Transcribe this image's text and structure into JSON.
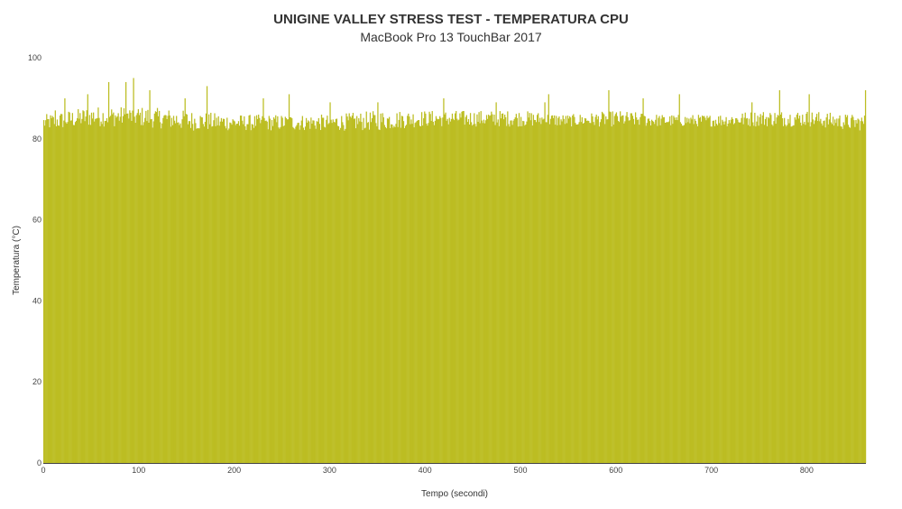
{
  "chart_data": {
    "type": "bar",
    "title": "UNIGINE VALLEY STRESS TEST - TEMPERATURA CPU",
    "subtitle": "MacBook Pro 13 TouchBar 2017",
    "xlabel": "Tempo (secondi)",
    "ylabel": "Temperatura (°C)",
    "xlim": [
      0,
      862
    ],
    "ylim": [
      0,
      100
    ],
    "x_ticks": [
      "0",
      "100",
      "200",
      "300",
      "400",
      "500",
      "600",
      "700",
      "800"
    ],
    "y_ticks": [
      "0",
      "20",
      "40",
      "60",
      "80",
      "100"
    ],
    "grid": false,
    "legend": "none",
    "bar_color": "#bcbd22",
    "series_profile": {
      "x": [
        0,
        50,
        100,
        150,
        200,
        250,
        300,
        350,
        400,
        450,
        500,
        550,
        600,
        650,
        700,
        750,
        800,
        850,
        862
      ],
      "typical_max": [
        86,
        88,
        88,
        87,
        86,
        86,
        86,
        87,
        87,
        87,
        87,
        86,
        87,
        86,
        86,
        87,
        87,
        86,
        86
      ],
      "typical_min": [
        82,
        83,
        83,
        82,
        82,
        82,
        82,
        82,
        83,
        83,
        83,
        83,
        83,
        83,
        83,
        83,
        83,
        82,
        82
      ]
    },
    "peaks": [
      {
        "x": 12,
        "y": 87
      },
      {
        "x": 22,
        "y": 90
      },
      {
        "x": 46,
        "y": 91
      },
      {
        "x": 68,
        "y": 94
      },
      {
        "x": 86,
        "y": 94
      },
      {
        "x": 94,
        "y": 95
      },
      {
        "x": 111,
        "y": 92
      },
      {
        "x": 148,
        "y": 90
      },
      {
        "x": 171,
        "y": 93
      },
      {
        "x": 230,
        "y": 90
      },
      {
        "x": 257,
        "y": 91
      },
      {
        "x": 300,
        "y": 89
      },
      {
        "x": 350,
        "y": 89
      },
      {
        "x": 419,
        "y": 90
      },
      {
        "x": 474,
        "y": 89
      },
      {
        "x": 525,
        "y": 89
      },
      {
        "x": 529,
        "y": 91
      },
      {
        "x": 592,
        "y": 92
      },
      {
        "x": 628,
        "y": 90
      },
      {
        "x": 666,
        "y": 91
      },
      {
        "x": 742,
        "y": 89
      },
      {
        "x": 771,
        "y": 92
      },
      {
        "x": 802,
        "y": 91
      },
      {
        "x": 861,
        "y": 92
      }
    ]
  }
}
